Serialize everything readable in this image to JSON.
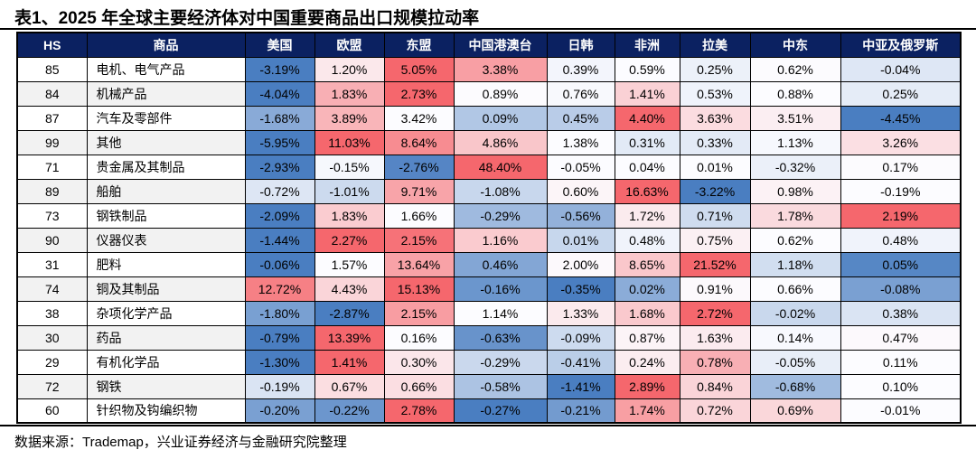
{
  "title": "表1、2025 年全球主要经济体对中国重要商品出口规模拉动率",
  "footer": "数据来源：Trademap，兴业证券经济与金融研究院整理",
  "colors": {
    "header_bg": "#0B2161",
    "header_text": "#FFFFFF",
    "scale_min_blue": "#4A7EC1",
    "scale_mid_white": "#FCFCFF",
    "scale_max_red": "#F5676D",
    "row_alt_bg": "#F2F2F2",
    "border": "#000000"
  },
  "chart_data": {
    "type": "table",
    "title": "表1、2025 年全球主要经济体对中国重要商品出口规模拉动率",
    "unit": "%",
    "color_scale": "per-row 3-color scale: row min = blue, row median = white, row max = red",
    "columns": [
      "HS",
      "商品",
      "美国",
      "欧盟",
      "东盟",
      "中国港澳台",
      "日韩",
      "非洲",
      "拉美",
      "中东",
      "中亚及俄罗斯"
    ],
    "rows": [
      {
        "hs": "85",
        "name": "电机、电气产品",
        "values": [
          -3.19,
          1.2,
          5.05,
          3.38,
          0.39,
          0.59,
          0.25,
          0.62,
          -0.04
        ]
      },
      {
        "hs": "84",
        "name": "机械产品",
        "values": [
          -4.04,
          1.83,
          2.73,
          0.89,
          0.76,
          1.41,
          0.53,
          0.88,
          0.25
        ]
      },
      {
        "hs": "87",
        "name": "汽车及零部件",
        "values": [
          -1.68,
          3.89,
          3.42,
          0.09,
          0.45,
          4.4,
          3.63,
          3.51,
          -4.45
        ]
      },
      {
        "hs": "99",
        "name": "其他",
        "values": [
          -5.95,
          11.03,
          8.64,
          4.86,
          1.38,
          0.31,
          0.33,
          1.13,
          3.26
        ]
      },
      {
        "hs": "71",
        "name": "贵金属及其制品",
        "values": [
          -2.93,
          -0.15,
          -2.76,
          48.4,
          -0.05,
          0.04,
          0.01,
          -0.32,
          0.17
        ]
      },
      {
        "hs": "89",
        "name": "船舶",
        "values": [
          -0.72,
          -1.01,
          9.71,
          -1.08,
          0.6,
          16.63,
          -3.22,
          0.98,
          -0.19
        ]
      },
      {
        "hs": "73",
        "name": "钢铁制品",
        "values": [
          -2.09,
          1.83,
          1.66,
          -0.29,
          -0.56,
          1.72,
          0.71,
          1.78,
          2.19
        ]
      },
      {
        "hs": "90",
        "name": "仪器仪表",
        "values": [
          -1.44,
          2.27,
          2.15,
          1.16,
          0.01,
          0.48,
          0.75,
          0.62,
          0.48
        ]
      },
      {
        "hs": "31",
        "name": "肥料",
        "values": [
          -0.06,
          1.57,
          13.64,
          0.46,
          2.0,
          8.65,
          21.52,
          1.18,
          0.05
        ]
      },
      {
        "hs": "74",
        "name": "铜及其制品",
        "values": [
          12.72,
          4.43,
          15.13,
          -0.16,
          -0.35,
          0.02,
          0.91,
          0.66,
          -0.08
        ]
      },
      {
        "hs": "38",
        "name": "杂项化学产品",
        "values": [
          -1.8,
          -2.87,
          2.15,
          1.14,
          1.33,
          1.68,
          2.72,
          -0.02,
          0.38
        ]
      },
      {
        "hs": "30",
        "name": "药品",
        "values": [
          -0.79,
          13.39,
          0.16,
          -0.63,
          -0.09,
          0.87,
          1.63,
          0.14,
          0.47
        ]
      },
      {
        "hs": "29",
        "name": "有机化学品",
        "values": [
          -1.3,
          1.41,
          0.3,
          -0.29,
          -0.41,
          0.24,
          0.78,
          -0.05,
          0.11
        ]
      },
      {
        "hs": "72",
        "name": "钢铁",
        "values": [
          -0.19,
          0.67,
          0.66,
          -0.58,
          -1.41,
          2.89,
          0.84,
          -0.68,
          0.1
        ]
      },
      {
        "hs": "60",
        "name": "针织物及钩编织物",
        "values": [
          -0.2,
          -0.22,
          2.78,
          -0.27,
          -0.21,
          1.74,
          0.72,
          0.69,
          -0.01
        ]
      }
    ]
  }
}
